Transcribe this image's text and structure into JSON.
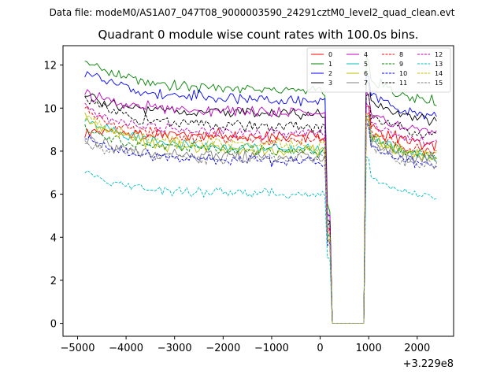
{
  "chart_data": {
    "type": "line",
    "suptitle": "Data file: modeM0/AS1A07_047T08_9000003590_24291cztM0_level2_quad_clean.evt",
    "title": "Quadrant 0 module wise count rates with 100.0s bins.",
    "xlabel": "",
    "ylabel": "",
    "x_offset_label": "+3.229e8",
    "xlim": [
      -5300,
      2750
    ],
    "ylim": [
      -0.6,
      12.9
    ],
    "xticks": [
      -5000,
      -4000,
      -3000,
      -2000,
      -1000,
      0,
      1000,
      2000
    ],
    "xtick_labels": [
      "−5000",
      "−4000",
      "−3000",
      "−2000",
      "−1000",
      "0",
      "1000",
      "2000"
    ],
    "yticks": [
      0,
      2,
      4,
      6,
      8,
      10,
      12
    ],
    "ytick_labels": [
      "0",
      "2",
      "4",
      "6",
      "8",
      "10",
      "12"
    ],
    "grid": false,
    "legend_position": "upper right",
    "bin_width_s": 100,
    "x_start": -4850,
    "x_step": 50,
    "gap_start": 200,
    "gap_end": 950,
    "series": [
      {
        "name": "0",
        "color": "#ff0000",
        "dash": "solid",
        "level_before": 8.7,
        "level_after": 8.5,
        "spread": 0.35,
        "slope": 0.08,
        "start_boost": 0.2
      },
      {
        "name": "1",
        "color": "#008000",
        "dash": "solid",
        "level_before": 10.8,
        "level_after": 10.6,
        "spread": 0.35,
        "slope": 0.25,
        "start_boost": 1.2
      },
      {
        "name": "2",
        "color": "#0000ff",
        "dash": "solid",
        "level_before": 10.3,
        "level_after": 9.9,
        "spread": 0.35,
        "slope": 0.25,
        "start_boost": 1.2
      },
      {
        "name": "3",
        "color": "#000000",
        "dash": "solid",
        "level_before": 9.7,
        "level_after": 9.6,
        "spread": 0.3,
        "slope": 0.12,
        "start_boost": 0.8
      },
      {
        "name": "4",
        "color": "#bf00bf",
        "dash": "solid",
        "level_before": 9.8,
        "level_after": 9.1,
        "spread": 0.3,
        "slope": 0.12,
        "start_boost": 0.8
      },
      {
        "name": "5",
        "color": "#00bfbf",
        "dash": "solid",
        "level_before": 8.1,
        "level_after": 8.0,
        "spread": 0.3,
        "slope": 0.1,
        "start_boost": 1.4
      },
      {
        "name": "6",
        "color": "#bfbf00",
        "dash": "solid",
        "level_before": 8.0,
        "level_after": 8.0,
        "spread": 0.35,
        "slope": 0.1,
        "start_boost": 1.5
      },
      {
        "name": "7",
        "color": "#808080",
        "dash": "solid",
        "level_before": 7.7,
        "level_after": 7.8,
        "spread": 0.35,
        "slope": 0.08,
        "start_boost": 0.8
      },
      {
        "name": "8",
        "color": "#ff0000",
        "dash": "dashed",
        "level_before": 8.5,
        "level_after": 8.2,
        "spread": 0.35,
        "slope": 0.1,
        "start_boost": 1.3
      },
      {
        "name": "9",
        "color": "#008000",
        "dash": "dashed",
        "level_before": 8.0,
        "level_after": 8.0,
        "spread": 0.3,
        "slope": 0.08,
        "start_boost": 1.0
      },
      {
        "name": "10",
        "color": "#0000ff",
        "dash": "dashed",
        "level_before": 7.5,
        "level_after": 7.6,
        "spread": 0.3,
        "slope": 0.1,
        "start_boost": 1.0
      },
      {
        "name": "11",
        "color": "#000000",
        "dash": "dashed",
        "level_before": 9.1,
        "level_after": 9.0,
        "spread": 0.3,
        "slope": 0.1,
        "start_boost": 1.3
      },
      {
        "name": "12",
        "color": "#bf00bf",
        "dash": "dashed",
        "level_before": 8.8,
        "level_after": 8.6,
        "spread": 0.3,
        "slope": 0.1,
        "start_boost": 1.2
      },
      {
        "name": "13",
        "color": "#00bfbf",
        "dash": "dashed",
        "level_before": 6.0,
        "level_after": 6.1,
        "spread": 0.25,
        "slope": 0.08,
        "start_boost": 1.0
      },
      {
        "name": "14",
        "color": "#bfbf00",
        "dash": "dashed",
        "level_before": 8.3,
        "level_after": 8.0,
        "spread": 0.35,
        "slope": 0.1,
        "start_boost": 1.2
      },
      {
        "name": "15",
        "color": "#808080",
        "dash": "dashed",
        "level_before": 7.6,
        "level_after": 7.6,
        "spread": 0.35,
        "slope": 0.08,
        "start_boost": 0.8
      }
    ]
  }
}
